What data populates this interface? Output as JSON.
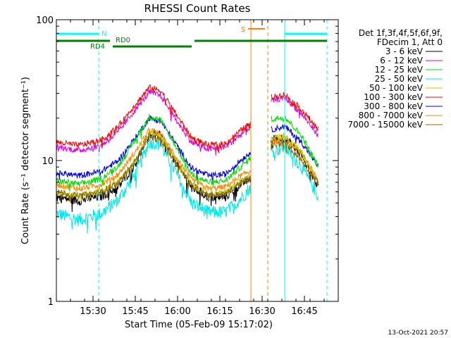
{
  "chart_data": {
    "type": "line",
    "title": "RHESSI Count Rates",
    "xlabel": "Start Time (05-Feb-09 15:17:02)",
    "ylabel": "Count Rate (s⁻¹ detector segment⁻¹)",
    "yscale": "log",
    "ylim": [
      1,
      100
    ],
    "xlim_minutes_after_1517": [
      0,
      100
    ],
    "x_ticks": [
      "15:30",
      "15:45",
      "16:00",
      "16:15",
      "16:30",
      "16:45"
    ],
    "x_tick_minutes": [
      13,
      28,
      43,
      58,
      73,
      88
    ],
    "y_ticks": [
      "1",
      "10",
      "100"
    ],
    "y_tick_values": [
      1,
      10,
      100
    ],
    "legend": {
      "header": [
        "Det 1f,3f,4f,5f,6f,9f,",
        "FDecim 1, Att 0"
      ],
      "placement": "right"
    },
    "gaps_minutes": [
      [
        69,
        76
      ]
    ],
    "series": [
      {
        "name": "3 - 6 keV",
        "color": "#000000",
        "values": [
          5.5,
          5.2,
          5.6,
          6.5,
          9.5,
          15.5,
          15.0,
          10.0,
          6.5,
          5.5,
          5.5,
          6.5,
          7.5,
          14.0,
          14.5,
          11.0,
          6.5
        ]
      },
      {
        "name": "6 - 12 keV",
        "color": "#e000e0",
        "values": [
          12.5,
          11.8,
          12.8,
          16.0,
          23.0,
          30.5,
          29.0,
          20.0,
          13.5,
          12.0,
          12.5,
          14.5,
          17.5,
          26.5,
          28.0,
          21.5,
          15.0
        ]
      },
      {
        "name": "12 - 25 keV",
        "color": "#00e000",
        "values": [
          7.2,
          6.8,
          7.4,
          9.2,
          14.0,
          20.5,
          19.5,
          13.0,
          8.0,
          7.0,
          7.2,
          8.5,
          10.5,
          19.5,
          20.5,
          15.0,
          9.0
        ]
      },
      {
        "name": "25 - 50 keV",
        "color": "#00e8e8",
        "values": [
          4.2,
          3.8,
          4.2,
          5.3,
          8.0,
          13.5,
          13.0,
          8.5,
          5.0,
          4.3,
          4.3,
          5.0,
          6.5,
          11.5,
          12.5,
          9.0,
          5.5
        ]
      },
      {
        "name": "50 - 100 keV",
        "color": "#c8c800",
        "values": [
          6.0,
          5.6,
          6.1,
          7.0,
          10.0,
          16.0,
          15.0,
          10.5,
          6.8,
          5.8,
          5.9,
          6.8,
          7.8,
          14.5,
          15.0,
          11.5,
          7.0
        ]
      },
      {
        "name": "100 - 300 keV",
        "color": "#ff0000",
        "values": [
          13.5,
          12.8,
          14.0,
          17.5,
          25.0,
          33.0,
          31.5,
          22.0,
          14.5,
          12.8,
          13.2,
          15.5,
          18.5,
          28.0,
          29.5,
          23.0,
          16.5
        ]
      },
      {
        "name": "300 - 800 keV",
        "color": "#0000e0",
        "values": [
          8.2,
          7.8,
          8.4,
          10.0,
          14.5,
          20.0,
          19.0,
          13.5,
          8.8,
          7.8,
          8.0,
          9.5,
          11.5,
          16.5,
          17.5,
          13.5,
          9.0
        ]
      },
      {
        "name": "800 - 7000 keV",
        "color": "#ff8800",
        "values": [
          6.8,
          6.3,
          6.8,
          8.0,
          11.5,
          16.5,
          15.5,
          11.0,
          7.3,
          6.3,
          6.5,
          7.5,
          8.5,
          13.5,
          14.5,
          11.0,
          7.5
        ]
      },
      {
        "name": "7000 - 15000 keV",
        "color": "#8b6c00",
        "values": [
          6.0,
          5.6,
          6.0,
          7.0,
          10.0,
          14.5,
          14.0,
          10.0,
          6.6,
          5.7,
          5.8,
          6.7,
          7.5,
          12.5,
          13.5,
          10.0,
          6.8
        ]
      }
    ],
    "series_x_minutes": [
      0,
      8,
      16,
      22,
      28,
      33,
      37,
      42,
      48,
      54,
      60,
      64,
      69,
      76,
      81,
      87,
      93
    ],
    "annotations": [
      {
        "label": "N",
        "kind": "night",
        "color": "#00ffff",
        "line_minutes": [
          0,
          15,
          81,
          96
        ],
        "bar_spans": [
          [
            0,
            15
          ],
          [
            81,
            96
          ]
        ]
      },
      {
        "label": "RD0",
        "kind": "attenuator",
        "color": "#008000"
      },
      {
        "label": "RD4",
        "kind": "attenuator",
        "color": "#008000"
      },
      {
        "label": "S",
        "kind": "saa",
        "color": "#ff8000",
        "line_minutes": [
          69,
          75
        ],
        "bar_span": [
          68,
          74
        ]
      }
    ],
    "annotation_bar": {
      "color": "#008000",
      "spans": [
        [
          0,
          20
        ],
        [
          49,
          96
        ]
      ]
    },
    "grid": false
  },
  "footer": {
    "timestamp": "13-Oct-2021 20:57"
  }
}
